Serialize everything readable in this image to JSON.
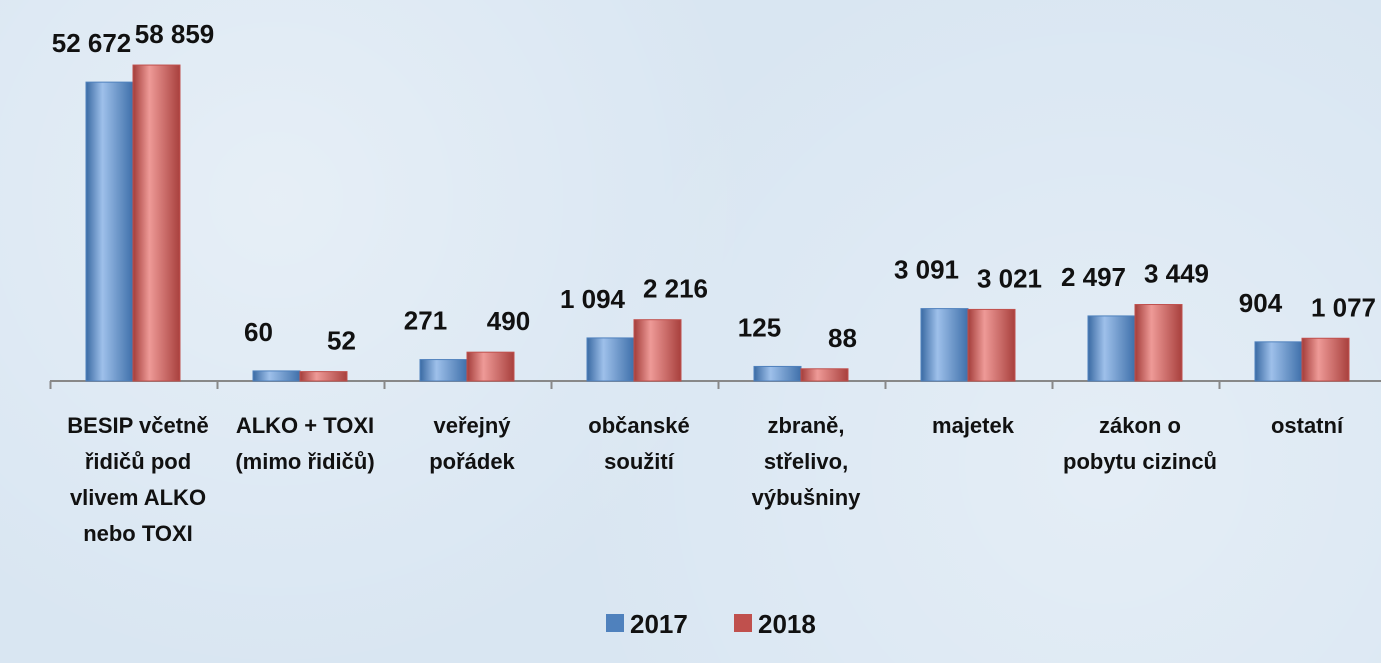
{
  "chart_data": {
    "type": "bar",
    "scale": "sqrt",
    "categories": [
      "BESIP včetně řidičů pod vlivem ALKO nebo TOXI",
      "ALKO + TOXI (mimo řidičů)",
      "veřejný pořádek",
      "občanské soužití",
      "zbraně, střelivo, výbušniny",
      "majetek",
      "zákon o pobytu cizinců",
      "ostatní"
    ],
    "series": [
      {
        "name": "2017",
        "color": "#4f81bd",
        "values": [
          52672,
          60,
          271,
          1094,
          125,
          3091,
          2497,
          904
        ],
        "value_labels": [
          "52 672",
          "60",
          "271",
          "1 094",
          "125",
          "3 091",
          "2 497",
          "904"
        ]
      },
      {
        "name": "2018",
        "color": "#c0504d",
        "values": [
          58859,
          52,
          490,
          2216,
          88,
          3021,
          3449,
          1077
        ],
        "value_labels": [
          "58 859",
          "52",
          "490",
          "2 216",
          "88",
          "3 021",
          "3 449",
          "1 077"
        ]
      }
    ],
    "ylim": [
      0,
      60000
    ]
  }
}
